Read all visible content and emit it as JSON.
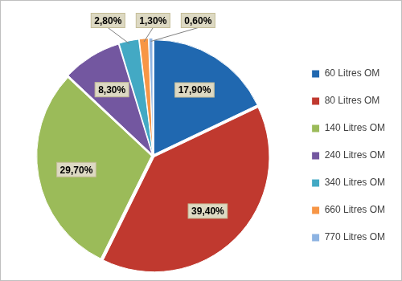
{
  "chart_data": {
    "type": "pie",
    "categories": [
      "60 Litres OM",
      "80 Litres OM",
      "140 Litres OM",
      "240 Litres OM",
      "340 Litres OM",
      "660 Litres OM",
      "770 Litres OM"
    ],
    "values": [
      17.9,
      39.4,
      29.7,
      8.3,
      2.8,
      1.3,
      0.6
    ],
    "value_labels": [
      "17,90%",
      "39,40%",
      "29,70%",
      "8,30%",
      "2,80%",
      "1,30%",
      "0,60%"
    ],
    "colors": [
      "#2068b0",
      "#c0392f",
      "#9bbb59",
      "#7357a0",
      "#43a9c4",
      "#f79646",
      "#8db3e2"
    ],
    "legend": "right",
    "data_labels": true
  }
}
